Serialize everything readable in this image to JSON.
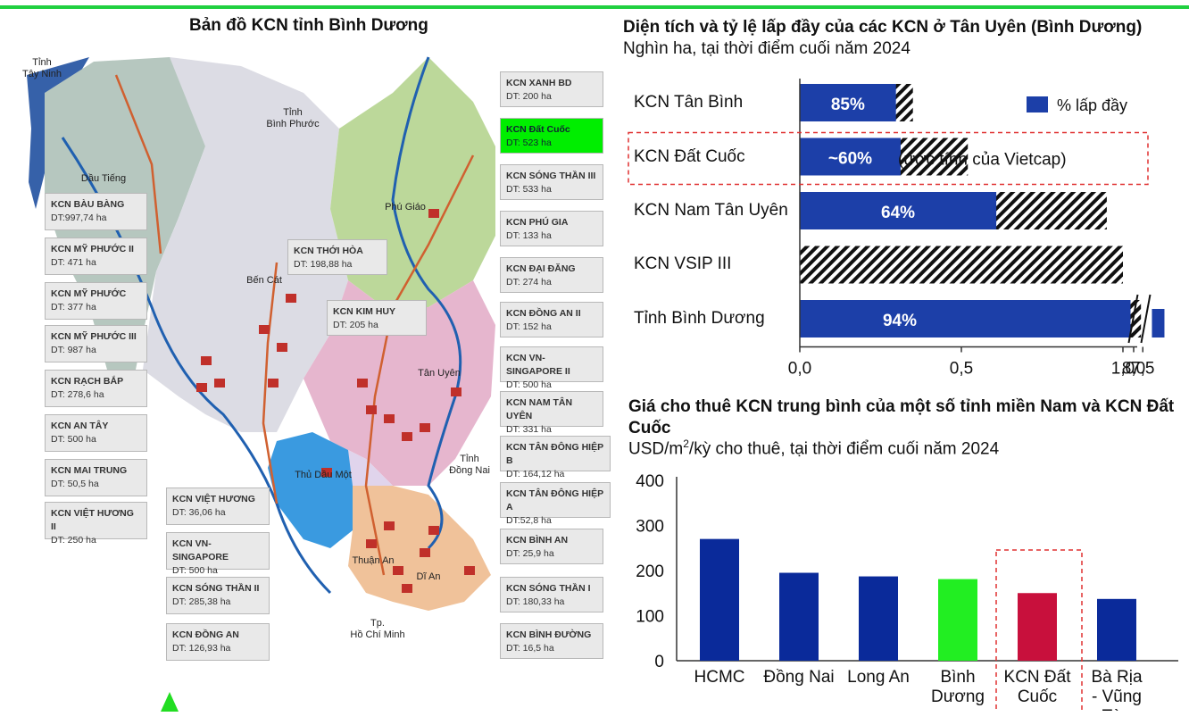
{
  "map": {
    "title": "Bản đồ KCN tỉnh Bình Dương",
    "places": {
      "tay_ninh": "Tỉnh\nTây Ninh",
      "binh_phuoc": "Tỉnh\nBình Phước",
      "dau_tieng": "Dầu Tiếng",
      "phu_giao": "Phú Giáo",
      "ben_cat": "Bến Cát",
      "tan_uyen": "Tân Uyên",
      "thu_dau_mot": "Thủ Dầu Một",
      "dong_nai": "Tỉnh\nĐồng Nai",
      "thuan_an": "Thuận An",
      "di_an": "Dĩ An",
      "hcm": "Tp.\nHồ Chí Minh"
    },
    "labels": [
      {
        "name": "KCN BÀU BÀNG",
        "dt": "DT:997,74 ha"
      },
      {
        "name": "KCN MỸ PHƯỚC II",
        "dt": "DT: 471 ha"
      },
      {
        "name": "KCN MỸ PHƯỚC",
        "dt": "DT: 377 ha"
      },
      {
        "name": "KCN MỸ PHƯỚC III",
        "dt": "DT: 987 ha"
      },
      {
        "name": "KCN RẠCH BẮP",
        "dt": "DT: 278,6 ha"
      },
      {
        "name": "KCN AN TÂY",
        "dt": "DT: 500 ha"
      },
      {
        "name": "KCN MAI TRUNG",
        "dt": "DT: 50,5 ha"
      },
      {
        "name": "KCN VIỆT HƯƠNG II",
        "dt": "DT: 250 ha"
      },
      {
        "name": "KCN THỚI HÒA",
        "dt": "DT: 198,88 ha"
      },
      {
        "name": "KCN KIM HUY",
        "dt": "DT: 205 ha"
      },
      {
        "name": "KCN VIỆT HƯƠNG",
        "dt": "DT: 36,06 ha"
      },
      {
        "name": "KCN VN-SINGAPORE",
        "dt": "DT: 500 ha"
      },
      {
        "name": "KCN SÓNG THẦN II",
        "dt": "DT: 285,38 ha"
      },
      {
        "name": "KCN ĐỒNG AN",
        "dt": "DT: 126,93 ha"
      },
      {
        "name": "KCN XANH BD",
        "dt": "DT: 200 ha"
      },
      {
        "name": "KCN Đất Cuốc",
        "dt": "DT: 523 ha"
      },
      {
        "name": "KCN SÓNG THẦN III",
        "dt": "DT: 533 ha"
      },
      {
        "name": "KCN PHÚ GIA",
        "dt": "DT: 133 ha"
      },
      {
        "name": "KCN ĐẠI ĐĂNG",
        "dt": "DT: 274 ha"
      },
      {
        "name": "KCN  ĐỒNG AN II",
        "dt": "DT: 152 ha"
      },
      {
        "name": "KCN VN-SINGAPORE II",
        "dt": "DT: 500 ha"
      },
      {
        "name": "KCN NAM TÂN UYÊN",
        "dt": "DT: 331 ha"
      },
      {
        "name": "KCN TÂN ĐÔNG HIỆP B",
        "dt": "DT: 164,12 ha"
      },
      {
        "name": "KCN TÂN ĐÔNG HIỆP A",
        "dt": "DT:52,8 ha"
      },
      {
        "name": "KCN BÌNH AN",
        "dt": "DT: 25,9 ha"
      },
      {
        "name": "KCN SÓNG THẦN I",
        "dt": "DT: 180,33 ha"
      },
      {
        "name": "KCN BÌNH ĐƯỜNG",
        "dt": "DT: 16,5 ha"
      }
    ]
  },
  "chart_data": [
    {
      "type": "bar",
      "orientation": "horizontal",
      "title": "Diện tích và tỷ lệ lấp đầy của các KCN ở Tân Uyên (Bình Dương)",
      "subtitle": "Nghìn ha, tại thời điểm cuối năm 2024",
      "categories": [
        "KCN Tân Bình",
        "KCN Đất Cuốc",
        "KCN Nam Tân Uyên",
        "KCN VSIP III",
        "Tỉnh Bình Dương"
      ],
      "area": [
        0.35,
        0.52,
        0.95,
        1.0,
        7.6
      ],
      "fill_labels": [
        "85%",
        "~60%",
        "64%",
        "",
        "94%"
      ],
      "fill_ratio": [
        0.85,
        0.6,
        0.64,
        0,
        0.94
      ],
      "legend": "% lấp đầy",
      "annotation": "(ước tính của Vietcap)",
      "highlight_category": "KCN Đất Cuốc",
      "x_ticks": [
        "0,0",
        "0,5",
        "1,0",
        "7,5",
        "8,0"
      ],
      "axis_break": true,
      "colors": {
        "fill": "#1c3fa8",
        "hatch": "#111111",
        "highlight_border": "#e03030"
      }
    },
    {
      "type": "bar",
      "title": "Giá cho thuê KCN trung bình của một số tỉnh miền Nam và KCN Đất Cuốc",
      "subtitle": "USD/m2/kỳ cho thuê, tại thời điểm cuối năm 2024",
      "categories": [
        "HCMC",
        "Đồng Nai",
        "Long An",
        "Bình Dương",
        "KCN Đất Cuốc",
        "Bà Rịa - Vũng Tàu"
      ],
      "category_lines": [
        [
          "HCMC"
        ],
        [
          "Đồng Nai"
        ],
        [
          "Long An"
        ],
        [
          "Bình",
          "Dương"
        ],
        [
          "KCN Đất",
          "Cuốc"
        ],
        [
          "Bà Rịa",
          "- Vũng",
          "Tàu"
        ]
      ],
      "values": [
        270,
        195,
        187,
        181,
        150,
        137
      ],
      "colors": [
        "#0a2a9a",
        "#0a2a9a",
        "#0a2a9a",
        "#22ee22",
        "#c8103c",
        "#0a2a9a"
      ],
      "ylim": [
        0,
        400
      ],
      "y_ticks": [
        "0",
        "100",
        "200",
        "300",
        "400"
      ],
      "highlight_category": "KCN Đất Cuốc"
    }
  ]
}
